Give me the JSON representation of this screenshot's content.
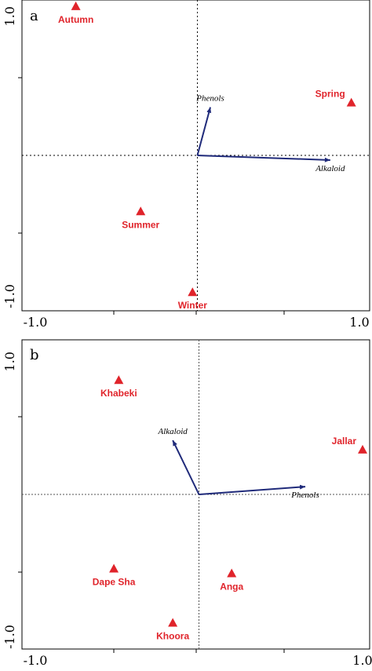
{
  "colors": {
    "points": "#e0242b",
    "arrows": "#1f2a7a",
    "frame": "#000000",
    "zero_line_a": "#000000",
    "zero_line_b": "#555555"
  },
  "chart_data": [
    {
      "type": "scatter",
      "panel": "a",
      "xlim": [
        -1.0,
        1.0
      ],
      "ylim": [
        -1.0,
        1.0
      ],
      "x_tick_labels": {
        "min": "-1.0",
        "max": "1.0"
      },
      "y_tick_labels": {
        "min": "-1.0",
        "max": "1.0"
      },
      "points": [
        {
          "label": "Autumn",
          "x": -0.75,
          "y": 0.96
        },
        {
          "label": "Spring",
          "x": 0.95,
          "y": 0.34
        },
        {
          "label": "Summer",
          "x": -0.35,
          "y": -0.36
        },
        {
          "label": "Winter",
          "x": -0.03,
          "y": -0.88
        }
      ],
      "arrows": [
        {
          "label": "Phenols",
          "x": 0.08,
          "y": 0.31
        },
        {
          "label": "Alkaloid",
          "x": 0.82,
          "y": -0.03
        }
      ]
    },
    {
      "type": "scatter",
      "panel": "b",
      "xlim": [
        -1.0,
        1.0
      ],
      "ylim": [
        -1.0,
        1.0
      ],
      "x_tick_labels": {
        "min": "-1.0",
        "max": "1.0"
      },
      "y_tick_labels": {
        "min": "-1.0",
        "max": "1.0"
      },
      "points": [
        {
          "label": "Khabeki",
          "x": -0.49,
          "y": 0.74
        },
        {
          "label": "Jallar",
          "x": 1.0,
          "y": 0.29
        },
        {
          "label": "Dape Sha",
          "x": -0.52,
          "y": -0.48
        },
        {
          "label": "Anga",
          "x": 0.2,
          "y": -0.51
        },
        {
          "label": "Khoora",
          "x": -0.16,
          "y": -0.83
        }
      ],
      "arrows": [
        {
          "label": "Alkaloid",
          "x": -0.16,
          "y": 0.35
        },
        {
          "label": "Phenols",
          "x": 0.65,
          "y": 0.05
        }
      ]
    }
  ]
}
